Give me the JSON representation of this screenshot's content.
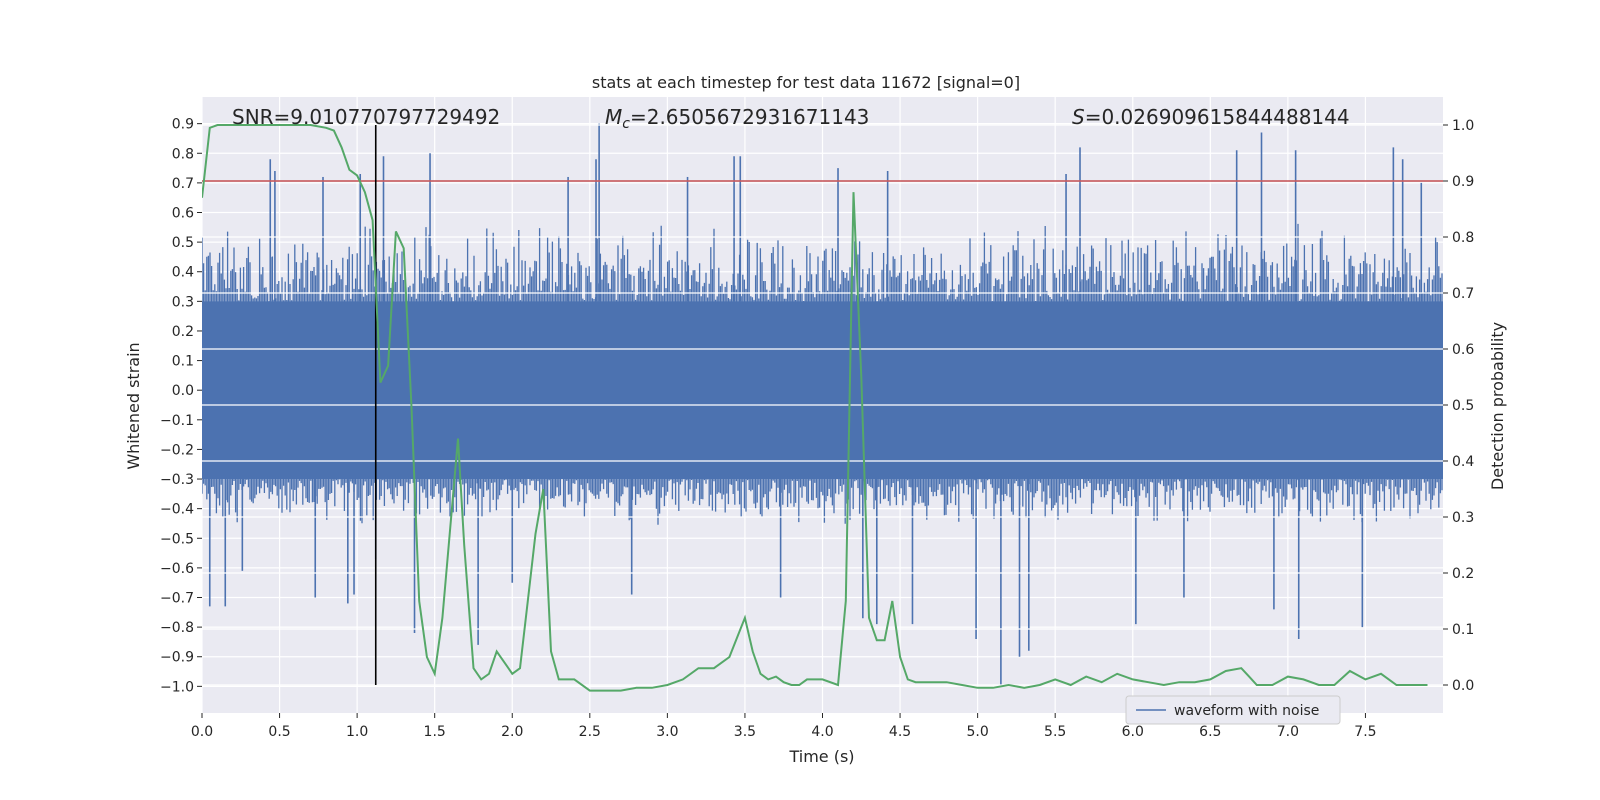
{
  "colors": {
    "plot_bg": "#EAEAF2",
    "grid": "#FFFFFF",
    "waveform": "#4C72B0",
    "probability": "#55A868",
    "threshold": "#C44E52",
    "marker": "#000000"
  },
  "chart_data": {
    "type": "line",
    "title": "stats at each timestep for test data 11672 [signal=0]",
    "xlabel": "Time (s)",
    "ylabel": "Whitened strain",
    "y2label": "Detection probability",
    "xlim": [
      0.0,
      8.0
    ],
    "ylim": [
      -1.09,
      0.99
    ],
    "y2lim": [
      -0.05,
      1.05
    ],
    "grid": true,
    "x_ticks": [
      "0.0",
      "0.5",
      "1.0",
      "1.5",
      "2.0",
      "2.5",
      "3.0",
      "3.5",
      "4.0",
      "4.5",
      "5.0",
      "5.5",
      "6.0",
      "6.5",
      "7.0",
      "7.5"
    ],
    "y_ticks": [
      "0.9",
      "0.8",
      "0.7",
      "0.6",
      "0.5",
      "0.4",
      "0.3",
      "0.2",
      "0.1",
      "0.0",
      "−0.1",
      "−0.2",
      "−0.3",
      "−0.4",
      "−0.5",
      "−0.6",
      "−0.7",
      "−0.8",
      "−0.9",
      "−1.0"
    ],
    "y2_ticks": [
      "1.0",
      "0.9",
      "0.8",
      "0.7",
      "0.6",
      "0.5",
      "0.4",
      "0.3",
      "0.2",
      "0.1",
      "0.0"
    ],
    "annotations": {
      "snr": "SNR=9.010770797729492",
      "mc_symbol": "M",
      "mc_sub": "c",
      "mc_value": "=2.6505672931671143",
      "s_symbol": "S",
      "s_value": "=0.026909615844488144"
    },
    "legend": {
      "placement": "lower-right",
      "entries": [
        "waveform with noise"
      ]
    },
    "threshold_probability": 0.9,
    "marker_time": 1.12,
    "waveform": {
      "name": "waveform with noise",
      "core_band": [
        -0.3,
        0.3
      ],
      "envelope_band": [
        -0.45,
        0.55
      ],
      "spikes": [
        {
          "t": 0.05,
          "v": -0.73
        },
        {
          "t": 0.15,
          "v": -0.73
        },
        {
          "t": 0.26,
          "v": -0.61
        },
        {
          "t": 0.44,
          "v": 0.78
        },
        {
          "t": 0.47,
          "v": 0.74
        },
        {
          "t": 0.73,
          "v": -0.7
        },
        {
          "t": 0.78,
          "v": 0.72
        },
        {
          "t": 0.94,
          "v": -0.72
        },
        {
          "t": 0.98,
          "v": -0.69
        },
        {
          "t": 1.02,
          "v": 0.73
        },
        {
          "t": 1.12,
          "v": -0.57
        },
        {
          "t": 1.17,
          "v": 0.79
        },
        {
          "t": 1.37,
          "v": -0.82
        },
        {
          "t": 1.47,
          "v": 0.8
        },
        {
          "t": 1.78,
          "v": -0.86
        },
        {
          "t": 2.0,
          "v": -0.65
        },
        {
          "t": 2.36,
          "v": 0.72
        },
        {
          "t": 2.54,
          "v": 0.78
        },
        {
          "t": 2.56,
          "v": 0.9
        },
        {
          "t": 2.77,
          "v": -0.69
        },
        {
          "t": 3.13,
          "v": 0.72
        },
        {
          "t": 3.43,
          "v": 0.79
        },
        {
          "t": 3.47,
          "v": 0.79
        },
        {
          "t": 3.73,
          "v": -0.7
        },
        {
          "t": 4.1,
          "v": 0.75
        },
        {
          "t": 4.26,
          "v": -0.77
        },
        {
          "t": 4.35,
          "v": -0.79
        },
        {
          "t": 4.42,
          "v": 0.74
        },
        {
          "t": 4.58,
          "v": -0.79
        },
        {
          "t": 4.99,
          "v": -0.84
        },
        {
          "t": 5.15,
          "v": -1.0
        },
        {
          "t": 5.27,
          "v": -0.9
        },
        {
          "t": 5.33,
          "v": -0.88
        },
        {
          "t": 5.57,
          "v": 0.73
        },
        {
          "t": 5.66,
          "v": 0.82
        },
        {
          "t": 6.02,
          "v": -0.79
        },
        {
          "t": 6.33,
          "v": -0.7
        },
        {
          "t": 6.67,
          "v": 0.81
        },
        {
          "t": 6.83,
          "v": 0.87
        },
        {
          "t": 6.91,
          "v": -0.74
        },
        {
          "t": 7.05,
          "v": 0.81
        },
        {
          "t": 7.07,
          "v": -0.84
        },
        {
          "t": 7.48,
          "v": -0.8
        },
        {
          "t": 7.68,
          "v": 0.82
        },
        {
          "t": 7.74,
          "v": 0.78
        },
        {
          "t": 7.86,
          "v": 0.7
        }
      ]
    },
    "probability_series": {
      "name": "detection probability",
      "x": [
        0.0,
        0.05,
        0.1,
        0.2,
        0.3,
        0.4,
        0.5,
        0.6,
        0.7,
        0.8,
        0.85,
        0.9,
        0.95,
        1.0,
        1.05,
        1.1,
        1.15,
        1.2,
        1.25,
        1.3,
        1.35,
        1.4,
        1.45,
        1.5,
        1.55,
        1.6,
        1.65,
        1.69,
        1.75,
        1.8,
        1.85,
        1.9,
        1.95,
        2.0,
        2.05,
        2.1,
        2.15,
        2.2,
        2.25,
        2.3,
        2.35,
        2.4,
        2.5,
        2.6,
        2.7,
        2.8,
        2.9,
        3.0,
        3.1,
        3.2,
        3.3,
        3.4,
        3.5,
        3.55,
        3.6,
        3.65,
        3.7,
        3.75,
        3.8,
        3.85,
        3.9,
        4.0,
        4.1,
        4.15,
        4.2,
        4.25,
        4.3,
        4.35,
        4.4,
        4.45,
        4.5,
        4.55,
        4.6,
        4.7,
        4.8,
        4.9,
        5.0,
        5.1,
        5.2,
        5.3,
        5.4,
        5.5,
        5.6,
        5.7,
        5.8,
        5.9,
        6.0,
        6.1,
        6.2,
        6.3,
        6.4,
        6.5,
        6.6,
        6.7,
        6.75,
        6.8,
        6.9,
        7.0,
        7.1,
        7.2,
        7.3,
        7.4,
        7.5,
        7.6,
        7.7,
        7.8,
        7.9
      ],
      "y": [
        0.87,
        0.995,
        1.0,
        1.0,
        1.0,
        1.0,
        1.0,
        1.0,
        1.0,
        0.995,
        0.99,
        0.96,
        0.92,
        0.91,
        0.88,
        0.83,
        0.54,
        0.57,
        0.81,
        0.78,
        0.5,
        0.15,
        0.05,
        0.02,
        0.12,
        0.28,
        0.44,
        0.25,
        0.03,
        0.01,
        0.02,
        0.06,
        0.04,
        0.02,
        0.03,
        0.15,
        0.27,
        0.35,
        0.06,
        0.01,
        0.01,
        0.01,
        -0.01,
        -0.01,
        -0.01,
        -0.005,
        -0.005,
        0.0,
        0.01,
        0.03,
        0.03,
        0.05,
        0.12,
        0.06,
        0.02,
        0.01,
        0.015,
        0.005,
        0.0,
        0.0,
        0.01,
        0.01,
        0.0,
        0.15,
        0.88,
        0.55,
        0.12,
        0.08,
        0.08,
        0.15,
        0.05,
        0.01,
        0.005,
        0.005,
        0.005,
        0.0,
        -0.005,
        -0.005,
        0.0,
        -0.005,
        0.0,
        0.01,
        0.0,
        0.015,
        0.005,
        0.02,
        0.01,
        0.005,
        0.0,
        0.005,
        0.005,
        0.01,
        0.025,
        0.03,
        0.015,
        0.0,
        0.0,
        0.015,
        0.01,
        0.0,
        0.0,
        0.025,
        0.01,
        0.02,
        0.0,
        0.0,
        0.0
      ]
    }
  }
}
